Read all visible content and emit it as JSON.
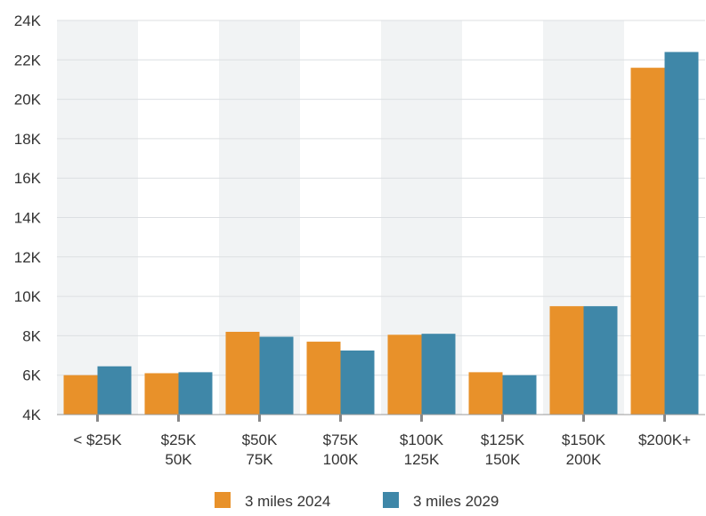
{
  "chart_data": {
    "type": "bar",
    "categories": [
      [
        "< $25K",
        ""
      ],
      [
        "$25K",
        "50K"
      ],
      [
        "$50K",
        "75K"
      ],
      [
        "$75K",
        "100K"
      ],
      [
        "$100K",
        "125K"
      ],
      [
        "$125K",
        "150K"
      ],
      [
        "$150K",
        "200K"
      ],
      [
        "$200K+",
        ""
      ]
    ],
    "series": [
      {
        "name": "3 miles 2024",
        "color": "#E8912A",
        "values": [
          6000,
          6100,
          8200,
          7700,
          8050,
          6150,
          9500,
          21600
        ]
      },
      {
        "name": "3 miles 2029",
        "color": "#3F87A8",
        "values": [
          6450,
          6150,
          7950,
          7250,
          8100,
          6000,
          9500,
          22400
        ]
      }
    ],
    "yticks": [
      "4K",
      "6K",
      "8K",
      "10K",
      "12K",
      "14K",
      "16K",
      "18K",
      "20K",
      "22K",
      "24K"
    ],
    "ylim": [
      4000,
      24000
    ],
    "grid": true,
    "alternating_band_color": "#F1F3F4",
    "legend_position": "bottom-center"
  }
}
